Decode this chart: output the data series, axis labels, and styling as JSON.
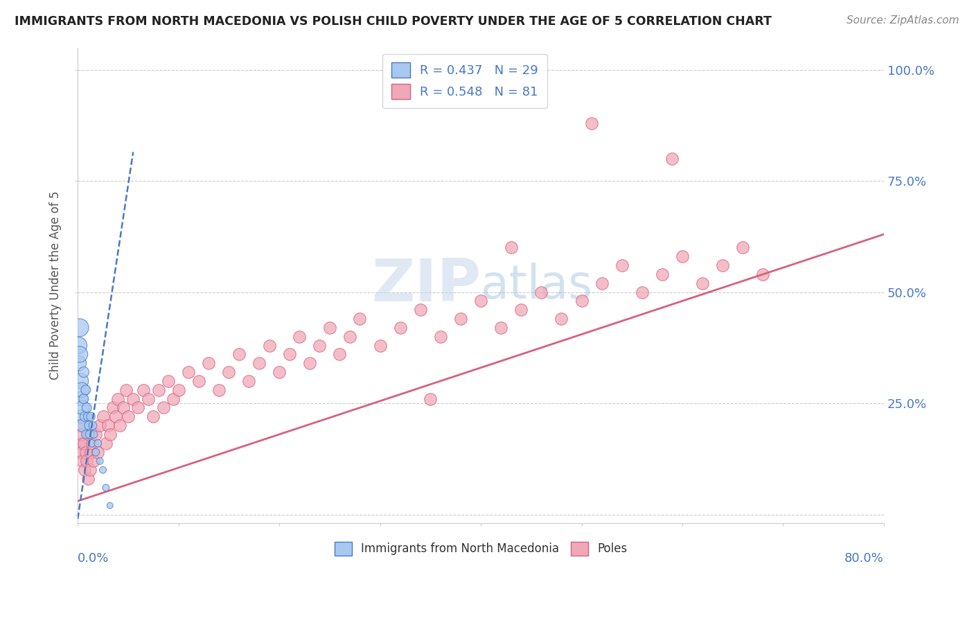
{
  "title": "IMMIGRANTS FROM NORTH MACEDONIA VS POLISH CHILD POVERTY UNDER THE AGE OF 5 CORRELATION CHART",
  "source": "Source: ZipAtlas.com",
  "ylabel": "Child Poverty Under the Age of 5",
  "yticks": [
    0.0,
    0.25,
    0.5,
    0.75,
    1.0
  ],
  "ytick_labels": [
    "",
    "25.0%",
    "50.0%",
    "75.0%",
    "100.0%"
  ],
  "xlim": [
    0.0,
    0.8
  ],
  "ylim": [
    -0.02,
    1.05
  ],
  "legend_r1": "R = 0.437",
  "legend_n1": "N = 29",
  "legend_r2": "R = 0.548",
  "legend_n2": "N = 81",
  "color_blue": "#A8C8F0",
  "color_pink": "#F0A8B8",
  "color_blue_line": "#4878C8",
  "color_pink_line": "#D8607C",
  "color_title": "#222222",
  "color_source": "#888888",
  "blue_x": [
    0.001,
    0.001,
    0.002,
    0.002,
    0.003,
    0.003,
    0.004,
    0.004,
    0.005,
    0.005,
    0.006,
    0.006,
    0.007,
    0.008,
    0.008,
    0.009,
    0.01,
    0.011,
    0.012,
    0.013,
    0.014,
    0.015,
    0.016,
    0.018,
    0.02,
    0.022,
    0.025,
    0.028,
    0.032
  ],
  "blue_y": [
    0.38,
    0.34,
    0.42,
    0.36,
    0.3,
    0.26,
    0.28,
    0.22,
    0.24,
    0.2,
    0.32,
    0.26,
    0.22,
    0.28,
    0.18,
    0.24,
    0.22,
    0.2,
    0.18,
    0.22,
    0.16,
    0.2,
    0.18,
    0.14,
    0.16,
    0.12,
    0.1,
    0.06,
    0.02
  ],
  "blue_sizes": [
    300,
    250,
    350,
    280,
    260,
    220,
    240,
    200,
    220,
    180,
    120,
    100,
    100,
    100,
    80,
    100,
    80,
    80,
    80,
    80,
    60,
    70,
    60,
    60,
    60,
    50,
    50,
    50,
    40
  ],
  "blue_trend_x": [
    0.0,
    0.035
  ],
  "blue_trend_y_start": -0.01,
  "blue_trend_slope": 15.0,
  "pink_x": [
    0.001,
    0.002,
    0.003,
    0.004,
    0.005,
    0.006,
    0.007,
    0.008,
    0.009,
    0.01,
    0.011,
    0.012,
    0.013,
    0.014,
    0.016,
    0.018,
    0.02,
    0.022,
    0.025,
    0.028,
    0.03,
    0.032,
    0.035,
    0.038,
    0.04,
    0.042,
    0.045,
    0.048,
    0.05,
    0.055,
    0.06,
    0.065,
    0.07,
    0.075,
    0.08,
    0.085,
    0.09,
    0.095,
    0.1,
    0.11,
    0.12,
    0.13,
    0.14,
    0.15,
    0.16,
    0.17,
    0.18,
    0.19,
    0.2,
    0.21,
    0.22,
    0.23,
    0.24,
    0.25,
    0.26,
    0.27,
    0.28,
    0.3,
    0.32,
    0.34,
    0.36,
    0.38,
    0.4,
    0.42,
    0.44,
    0.46,
    0.48,
    0.5,
    0.52,
    0.54,
    0.56,
    0.58,
    0.6,
    0.62,
    0.64,
    0.66,
    0.68,
    0.35,
    0.43,
    0.51,
    0.59
  ],
  "pink_y": [
    0.16,
    0.2,
    0.14,
    0.18,
    0.12,
    0.16,
    0.1,
    0.14,
    0.12,
    0.08,
    0.18,
    0.1,
    0.14,
    0.16,
    0.12,
    0.18,
    0.14,
    0.2,
    0.22,
    0.16,
    0.2,
    0.18,
    0.24,
    0.22,
    0.26,
    0.2,
    0.24,
    0.28,
    0.22,
    0.26,
    0.24,
    0.28,
    0.26,
    0.22,
    0.28,
    0.24,
    0.3,
    0.26,
    0.28,
    0.32,
    0.3,
    0.34,
    0.28,
    0.32,
    0.36,
    0.3,
    0.34,
    0.38,
    0.32,
    0.36,
    0.4,
    0.34,
    0.38,
    0.42,
    0.36,
    0.4,
    0.44,
    0.38,
    0.42,
    0.46,
    0.4,
    0.44,
    0.48,
    0.42,
    0.46,
    0.5,
    0.44,
    0.48,
    0.52,
    0.56,
    0.5,
    0.54,
    0.58,
    0.52,
    0.56,
    0.6,
    0.54,
    0.26,
    0.6,
    0.88,
    0.8
  ],
  "pink_trend_x": [
    0.0,
    0.8
  ],
  "pink_trend_y_start": 0.03,
  "pink_trend_slope": 0.75
}
